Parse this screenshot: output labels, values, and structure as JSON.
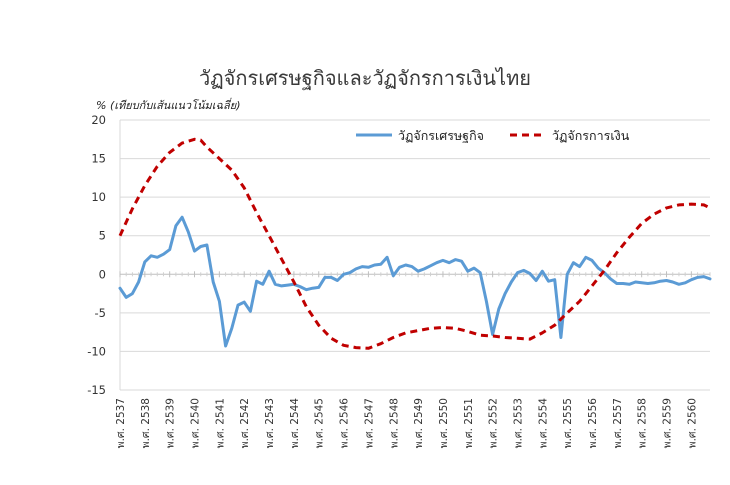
{
  "chart_data": {
    "type": "line",
    "title": "วัฏจักรเศรษฐกิจและวัฏจักรการเงินไทย",
    "ylabel": "% (เทียบกับเส้นแนวโน้มเฉลี่ย)",
    "xlabel": "",
    "ylim": [
      -15,
      20
    ],
    "yticks": [
      -15,
      -10,
      -5,
      0,
      5,
      10,
      15,
      20
    ],
    "x_range": [
      2537.0,
      2560.75
    ],
    "xtick_values": [
      2537,
      2538,
      2539,
      2540,
      2541,
      2542,
      2543,
      2544,
      2545,
      2546,
      2547,
      2548,
      2549,
      2550,
      2551,
      2552,
      2553,
      2554,
      2555,
      2556,
      2557,
      2558,
      2559,
      2560
    ],
    "xtick_labels": [
      "พ.ศ. 2537",
      "พ.ศ. 2538",
      "พ.ศ. 2539",
      "พ.ศ. 2540",
      "พ.ศ. 2541",
      "พ.ศ. 2542",
      "พ.ศ. 2543",
      "พ.ศ. 2544",
      "พ.ศ. 2545",
      "พ.ศ. 2546",
      "พ.ศ. 2547",
      "พ.ศ. 2548",
      "พ.ศ. 2549",
      "พ.ศ. 2550",
      "พ.ศ. 2551",
      "พ.ศ. 2552",
      "พ.ศ. 2553",
      "พ.ศ. 2554",
      "พ.ศ. 2555",
      "พ.ศ. 2556",
      "พ.ศ. 2557",
      "พ.ศ. 2558",
      "พ.ศ. 2559",
      "พ.ศ. 2560"
    ],
    "grid": true,
    "legend_position": "top-right",
    "series": [
      {
        "name": "วัฏจักรเศรษฐกิจ",
        "color": "#5b9bd5",
        "style": "solid",
        "x": [
          2537.0,
          2537.25,
          2537.5,
          2537.75,
          2538.0,
          2538.25,
          2538.5,
          2538.75,
          2539.0,
          2539.25,
          2539.5,
          2539.75,
          2540.0,
          2540.25,
          2540.5,
          2540.75,
          2541.0,
          2541.25,
          2541.5,
          2541.75,
          2542.0,
          2542.25,
          2542.5,
          2542.75,
          2543.0,
          2543.25,
          2543.5,
          2543.75,
          2544.0,
          2544.25,
          2544.5,
          2544.75,
          2545.0,
          2545.25,
          2545.5,
          2545.75,
          2546.0,
          2546.25,
          2546.5,
          2546.75,
          2547.0,
          2547.25,
          2547.5,
          2547.75,
          2548.0,
          2548.25,
          2548.5,
          2548.75,
          2549.0,
          2549.25,
          2549.5,
          2549.75,
          2550.0,
          2550.25,
          2550.5,
          2550.75,
          2551.0,
          2551.25,
          2551.5,
          2551.75,
          2552.0,
          2552.25,
          2552.5,
          2552.75,
          2553.0,
          2553.25,
          2553.5,
          2553.75,
          2554.0,
          2554.25,
          2554.5,
          2554.75,
          2555.0,
          2555.25,
          2555.5,
          2555.75,
          2556.0,
          2556.25,
          2556.5,
          2556.75,
          2557.0,
          2557.25,
          2557.5,
          2557.75,
          2558.0,
          2558.25,
          2558.5,
          2558.75,
          2559.0,
          2559.25,
          2559.5,
          2559.75,
          2560.0,
          2560.25,
          2560.5,
          2560.75
        ],
        "values": [
          -1.8,
          -3.0,
          -2.5,
          -1.0,
          1.6,
          2.4,
          2.2,
          2.6,
          3.2,
          6.3,
          7.4,
          5.5,
          3.0,
          3.6,
          3.8,
          -1.0,
          -3.5,
          -9.3,
          -7.0,
          -4.0,
          -3.6,
          -4.8,
          -0.9,
          -1.3,
          0.4,
          -1.3,
          -1.5,
          -1.4,
          -1.3,
          -1.6,
          -2.0,
          -1.8,
          -1.7,
          -0.4,
          -0.4,
          -0.8,
          0.0,
          0.2,
          0.7,
          1.0,
          0.9,
          1.2,
          1.3,
          2.2,
          -0.2,
          0.9,
          1.2,
          1.0,
          0.4,
          0.7,
          1.1,
          1.5,
          1.8,
          1.5,
          1.9,
          1.7,
          0.4,
          0.8,
          0.2,
          -3.5,
          -7.8,
          -4.5,
          -2.5,
          -1.0,
          0.2,
          0.5,
          0.1,
          -0.8,
          0.4,
          -0.9,
          -0.7,
          -8.2,
          0.0,
          1.5,
          1.0,
          2.2,
          1.8,
          0.8,
          0.2,
          -0.6,
          -1.2,
          -1.2,
          -1.3,
          -1.0,
          -1.1,
          -1.2,
          -1.1,
          -0.9,
          -0.8,
          -1.0,
          -1.3,
          -1.1,
          -0.7,
          -0.4,
          -0.3,
          -0.6
        ]
      },
      {
        "name": "วัฏจักรการเงิน",
        "color": "#c00000",
        "style": "dashed",
        "x": [
          2537.0,
          2537.5,
          2538.0,
          2538.5,
          2539.0,
          2539.5,
          2540.0,
          2540.25,
          2540.5,
          2541.0,
          2541.5,
          2542.0,
          2542.5,
          2543.0,
          2543.5,
          2544.0,
          2544.5,
          2545.0,
          2545.5,
          2546.0,
          2546.5,
          2547.0,
          2547.5,
          2548.0,
          2548.5,
          2549.0,
          2549.5,
          2550.0,
          2550.5,
          2551.0,
          2551.5,
          2552.0,
          2552.5,
          2553.0,
          2553.5,
          2554.0,
          2554.5,
          2555.0,
          2555.5,
          2556.0,
          2556.5,
          2557.0,
          2557.5,
          2558.0,
          2558.5,
          2559.0,
          2559.5,
          2560.0,
          2560.5,
          2560.75
        ],
        "values": [
          5.0,
          8.5,
          11.5,
          14.0,
          15.8,
          17.0,
          17.5,
          17.4,
          16.5,
          15.0,
          13.5,
          11.2,
          8.0,
          5.0,
          2.0,
          -1.0,
          -4.2,
          -6.6,
          -8.3,
          -9.2,
          -9.5,
          -9.6,
          -9.0,
          -8.2,
          -7.6,
          -7.3,
          -7.0,
          -6.9,
          -7.0,
          -7.4,
          -7.9,
          -8.0,
          -8.2,
          -8.3,
          -8.4,
          -7.6,
          -6.6,
          -5.0,
          -3.5,
          -1.5,
          0.5,
          2.8,
          4.8,
          6.6,
          7.8,
          8.6,
          9.0,
          9.1,
          9.0,
          8.6
        ]
      }
    ]
  }
}
